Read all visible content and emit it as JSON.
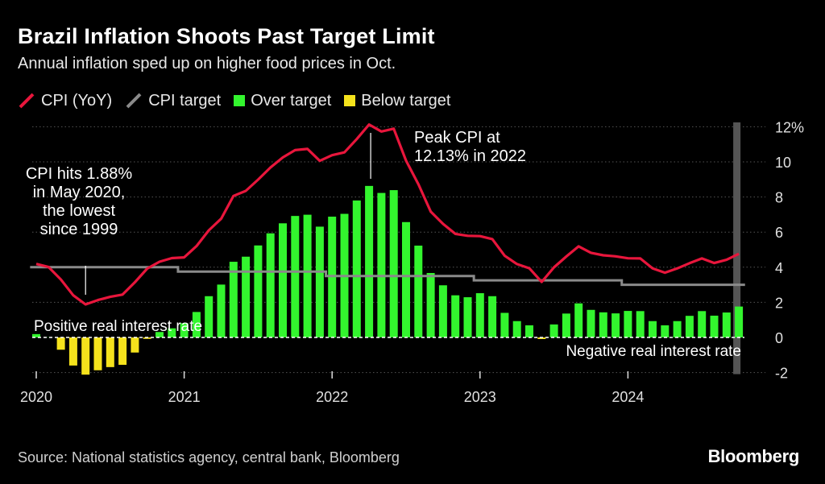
{
  "title": "Brazil Inflation Shoots Past Target Limit",
  "subtitle": "Annual inflation sped up on higher food prices in Oct.",
  "legend": [
    {
      "label": "CPI (YoY)",
      "color": "#e8163c",
      "kind": "line"
    },
    {
      "label": "CPI target",
      "color": "#8a8a8a",
      "kind": "line"
    },
    {
      "label": "Over target",
      "color": "#33f52e",
      "kind": "box"
    },
    {
      "label": "Below target",
      "color": "#f5e21c",
      "kind": "box"
    }
  ],
  "source": "Source: National statistics agency, central bank, Bloomberg",
  "brand": "Bloomberg",
  "chart_data": {
    "type": "bar+line",
    "start": "2020-01",
    "end": "2024-10",
    "x_tick_labels": [
      "2020",
      "2021",
      "2022",
      "2023",
      "2024"
    ],
    "y_tick_labels": [
      "-2",
      "0",
      "2",
      "4",
      "6",
      "8",
      "10",
      "12%"
    ],
    "y_ticks": [
      -2,
      0,
      2,
      4,
      6,
      8,
      10,
      12
    ],
    "ylim": [
      -2,
      12.3
    ],
    "colors": {
      "cpi": "#e8163c",
      "target": "#8a8a8a",
      "over": "#33f52e",
      "below": "#f5e21c",
      "grid": "#555555",
      "zero": "#ffffff"
    },
    "series": [
      {
        "name": "CPI (YoY)",
        "values": [
          4.19,
          4.01,
          3.3,
          2.4,
          1.88,
          2.13,
          2.31,
          2.44,
          3.14,
          3.92,
          4.31,
          4.52,
          4.56,
          5.2,
          6.1,
          6.76,
          8.06,
          8.35,
          8.99,
          9.68,
          10.25,
          10.67,
          10.74,
          10.06,
          10.38,
          10.54,
          11.3,
          12.13,
          11.73,
          11.89,
          10.07,
          8.73,
          7.17,
          6.47,
          5.9,
          5.79,
          5.77,
          5.6,
          4.65,
          4.18,
          3.94,
          3.16,
          3.99,
          4.61,
          5.19,
          4.82,
          4.68,
          4.62,
          4.51,
          4.5,
          3.93,
          3.69,
          3.93,
          4.23,
          4.5,
          4.24,
          4.42,
          4.76
        ]
      },
      {
        "name": "CPI target",
        "values": [
          4,
          4,
          4,
          4,
          4,
          4,
          4,
          4,
          4,
          4,
          4,
          4,
          3.75,
          3.75,
          3.75,
          3.75,
          3.75,
          3.75,
          3.75,
          3.75,
          3.75,
          3.75,
          3.75,
          3.75,
          3.5,
          3.5,
          3.5,
          3.5,
          3.5,
          3.5,
          3.5,
          3.5,
          3.5,
          3.5,
          3.5,
          3.5,
          3.25,
          3.25,
          3.25,
          3.25,
          3.25,
          3.25,
          3.25,
          3.25,
          3.25,
          3.25,
          3.25,
          3.25,
          3,
          3,
          3,
          3,
          3,
          3,
          3,
          3,
          3,
          3
        ]
      },
      {
        "name": "Over target",
        "values": [
          0.19,
          0.01,
          0,
          0,
          0,
          0,
          0,
          0,
          0,
          0,
          0.31,
          0.52,
          0.81,
          1.45,
          2.35,
          3.01,
          4.31,
          4.6,
          5.24,
          5.93,
          6.5,
          6.92,
          6.99,
          6.31,
          6.88,
          7.04,
          7.8,
          8.63,
          8.23,
          8.39,
          6.57,
          5.23,
          3.67,
          2.97,
          2.4,
          2.29,
          2.52,
          2.35,
          1.4,
          0.93,
          0.69,
          0,
          0.74,
          1.36,
          1.94,
          1.57,
          1.43,
          1.37,
          1.51,
          1.5,
          0.93,
          0.69,
          0.93,
          1.23,
          1.5,
          1.24,
          1.42,
          1.76
        ]
      },
      {
        "name": "Below target",
        "values": [
          0,
          0,
          -0.7,
          -1.6,
          -2.12,
          -1.87,
          -1.69,
          -1.56,
          -0.86,
          -0.08,
          0,
          0,
          0,
          0,
          0,
          0,
          0,
          0,
          0,
          0,
          0,
          0,
          0,
          0,
          0,
          0,
          0,
          0,
          0,
          0,
          0,
          0,
          0,
          0,
          0,
          0,
          0,
          0,
          0,
          0,
          0,
          -0.09,
          0,
          0,
          0,
          0,
          0,
          0,
          0,
          0,
          0,
          0,
          0,
          0,
          0,
          0,
          0,
          0
        ]
      }
    ],
    "annotations": [
      {
        "text": [
          "CPI hits 1.88%",
          "in May 2020,",
          "the lowest",
          "since 1999"
        ],
        "month_index": 4
      },
      {
        "text": [
          "Peak CPI at",
          "12.13% in 2022"
        ],
        "month_index": 27
      },
      {
        "text": [
          "Positive real interest rate"
        ]
      },
      {
        "text": [
          "Negative real interest rate"
        ]
      }
    ]
  }
}
